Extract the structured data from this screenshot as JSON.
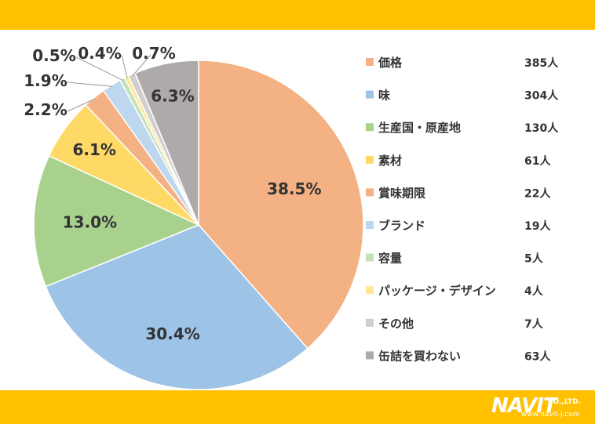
{
  "colors": {
    "band": "#FFC000",
    "label_text": "#333333",
    "legend_text": "#333333",
    "slice_border": "#ffffff"
  },
  "chart_data": {
    "type": "pie",
    "title": "",
    "start_angle_deg": 0,
    "direction": "clockwise",
    "legend_position": "right",
    "slices": [
      {
        "label": "価格",
        "count": "385人",
        "percent": 38.5,
        "percent_label": "38.5%",
        "color": "#F4B183"
      },
      {
        "label": "味",
        "count": "304人",
        "percent": 30.4,
        "percent_label": "30.4%",
        "color": "#9DC3E6"
      },
      {
        "label": "生産国・原産地",
        "count": "130人",
        "percent": 13.0,
        "percent_label": "13.0%",
        "color": "#A9D18E"
      },
      {
        "label": "素材",
        "count": "61人",
        "percent": 6.1,
        "percent_label": "6.1%",
        "color": "#FFD966"
      },
      {
        "label": "賞味期限",
        "count": "22人",
        "percent": 2.2,
        "percent_label": "2.2%",
        "color": "#F4B183"
      },
      {
        "label": "ブランド",
        "count": "19人",
        "percent": 1.9,
        "percent_label": "1.9%",
        "color": "#BDD7EE"
      },
      {
        "label": "容量",
        "count": "5人",
        "percent": 0.5,
        "percent_label": "0.5%",
        "color": "#C5E0B4"
      },
      {
        "label": "パッケージ・デザイン",
        "count": "4人",
        "percent": 0.4,
        "percent_label": "0.4%",
        "color": "#FFE699"
      },
      {
        "label": "その他",
        "count": "7人",
        "percent": 0.7,
        "percent_label": "0.7%",
        "color": "#D0CECE"
      },
      {
        "label": "缶詰を買わない",
        "count": "63人",
        "percent": 6.3,
        "percent_label": "6.3%",
        "color": "#AEAAAA"
      }
    ]
  },
  "logo": {
    "name": "NAVIT",
    "suffix": "CO.,LTD.",
    "url": "www.navit-j.com"
  }
}
